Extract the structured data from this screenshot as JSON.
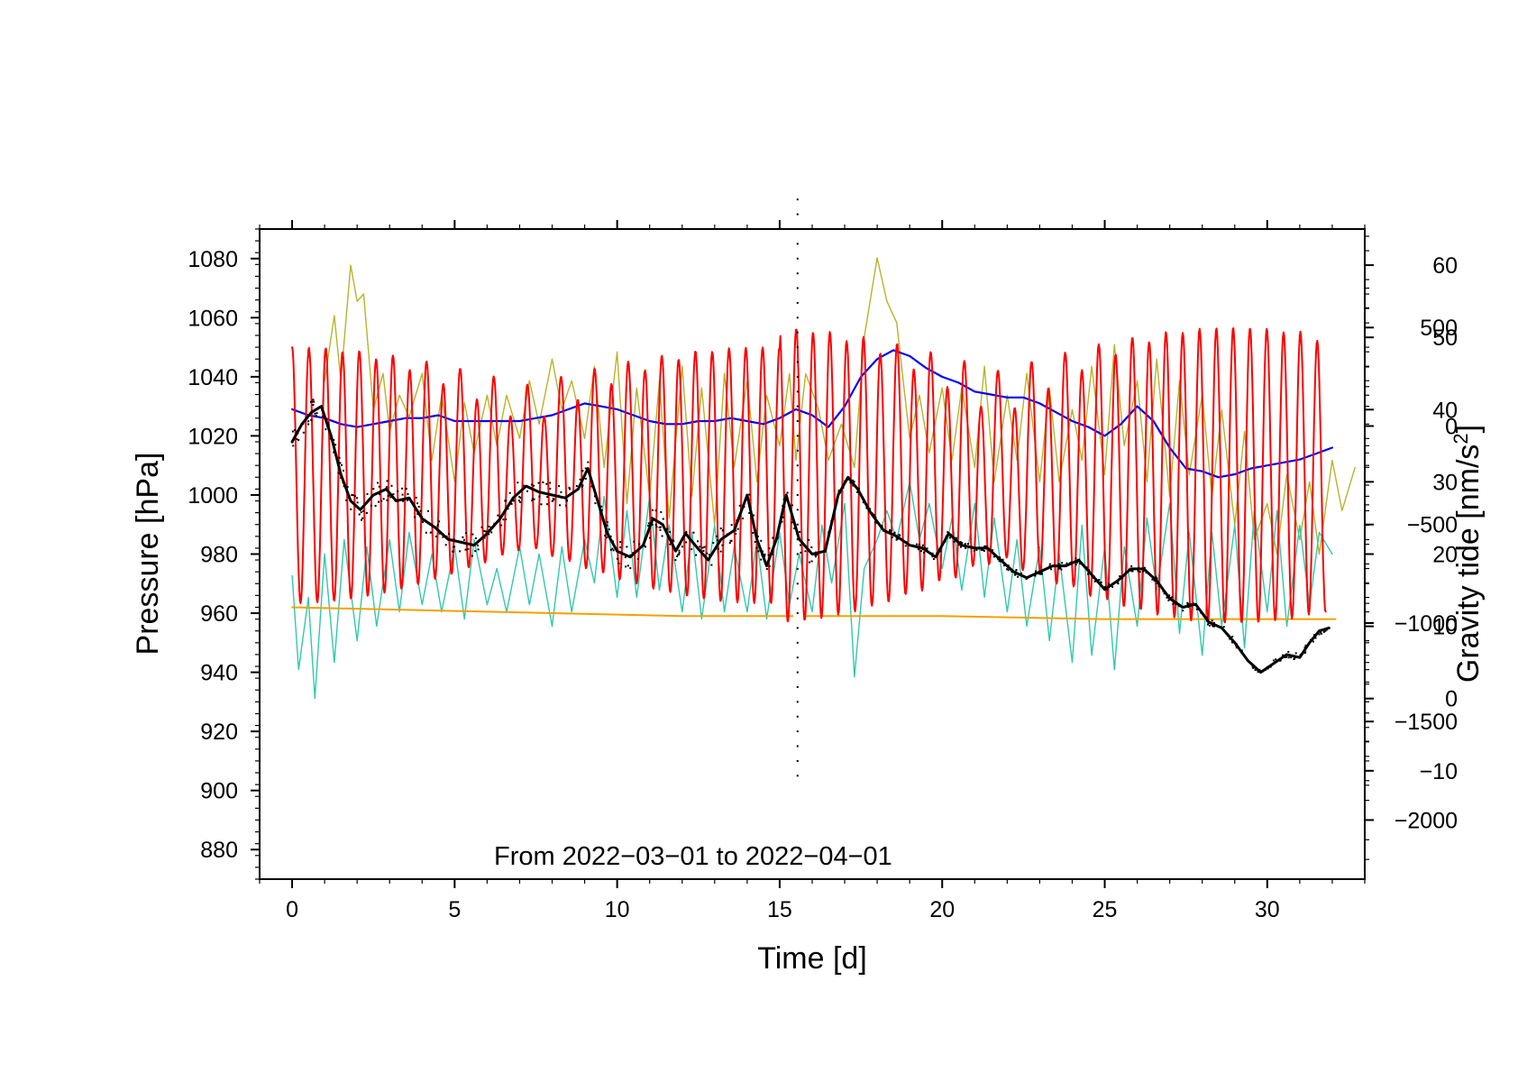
{
  "chart_data": {
    "type": "line",
    "annotation": "From 2022−03−01 to 2022−04−01",
    "x_axis": {
      "label": "Time [d]",
      "range": [
        -1,
        33
      ],
      "ticks": [
        0,
        5,
        10,
        15,
        20,
        25,
        30
      ],
      "tick_labels": [
        "0",
        "5",
        "10",
        "15",
        "20",
        "25",
        "30"
      ]
    },
    "y_axis_left": {
      "label": "Pressure [hPa]",
      "range": [
        870,
        1090
      ],
      "ticks": [
        880,
        900,
        920,
        940,
        960,
        980,
        1000,
        1020,
        1040,
        1060,
        1080
      ],
      "tick_labels": [
        "880",
        "900",
        "920",
        "940",
        "960",
        "980",
        "1000",
        "1020",
        "1040",
        "1060",
        "1080"
      ]
    },
    "y_axis_right_upper": {
      "label": "Gravity tide [nm/s",
      "label_superscript": "2",
      "label_close": "]",
      "range": [
        -25,
        65
      ],
      "ticks": [
        -10,
        0,
        10,
        20,
        30,
        40,
        50,
        60
      ],
      "tick_labels": [
        "−10",
        "0",
        "10",
        "20",
        "30",
        "40",
        "50",
        "60"
      ]
    },
    "y_axis_right_lower": {
      "range": [
        -2300,
        1000
      ],
      "ticks": [
        -2000,
        -1500,
        -1000,
        -500,
        0,
        500
      ],
      "tick_labels": [
        "−2000",
        "−1500",
        "−1000",
        "−500",
        "0",
        "500"
      ]
    },
    "series": [
      {
        "name": "olive",
        "color": "#b5b52a",
        "axis": "right_upper",
        "x": [
          1,
          1.3,
          1.5,
          1.8,
          2.0,
          2.2,
          2.5,
          2.8,
          3.0,
          3.3,
          3.6,
          4.0,
          4.3,
          4.6,
          5.0,
          5.3,
          5.6,
          6.0,
          6.3,
          6.6,
          7.0,
          7.3,
          7.6,
          8.0,
          8.3,
          8.6,
          9.0,
          9.3,
          9.6,
          10.0,
          10.3,
          10.6,
          11.0,
          11.3,
          11.6,
          12.0,
          12.3,
          12.6,
          13.0,
          13.3,
          13.6,
          14.0,
          14.3,
          14.6,
          15.0,
          15.3,
          15.5,
          15.8,
          16.2,
          16.5,
          16.9,
          17.3,
          17.6,
          18.0,
          18.3,
          18.6,
          19.0,
          19.3,
          19.6,
          20.0,
          20.3,
          20.6,
          21.0,
          21.3,
          21.6,
          22.0,
          22.3,
          22.6,
          23.0,
          23.3,
          23.6,
          24.0,
          24.3,
          24.6,
          25.0,
          25.3,
          25.6,
          26.0,
          26.3,
          26.6,
          27.0,
          27.3,
          27.6,
          28.0,
          28.3,
          28.6,
          29.0,
          29.3,
          29.6,
          30.0,
          30.3,
          30.6,
          31.0,
          31.3,
          31.6,
          32.0,
          32.3,
          32.7
        ],
        "values": [
          44,
          53,
          44,
          60,
          55,
          56,
          40,
          45,
          37,
          42,
          39,
          45,
          33,
          42,
          30,
          41,
          34,
          42,
          35,
          42,
          36,
          44,
          38,
          47,
          40,
          44,
          36,
          46,
          32,
          48,
          27,
          43,
          28,
          44,
          25,
          46,
          28,
          43,
          24,
          45,
          32,
          44,
          30,
          42,
          35,
          45,
          33,
          45,
          40,
          33,
          38,
          32,
          50,
          61,
          55,
          52,
          36,
          42,
          34,
          43,
          33,
          43,
          32,
          46,
          30,
          42,
          33,
          45,
          30,
          43,
          30,
          40,
          33,
          46,
          31,
          49,
          35,
          44,
          30,
          47,
          28,
          44,
          31,
          42,
          28,
          40,
          24,
          37,
          22,
          27,
          20,
          31,
          22,
          30,
          20,
          33,
          26,
          32
        ]
      },
      {
        "name": "teal",
        "color": "#30c9ae",
        "axis": "right_upper",
        "x": [
          0,
          0.2,
          0.5,
          0.7,
          1.0,
          1.3,
          1.6,
          2.0,
          2.3,
          2.6,
          3.0,
          3.3,
          3.6,
          4.0,
          4.3,
          4.6,
          5.0,
          5.3,
          5.6,
          6.0,
          6.3,
          6.6,
          7.0,
          7.3,
          7.6,
          8.0,
          8.3,
          8.6,
          9.0,
          9.3,
          9.6,
          10.0,
          10.3,
          10.6,
          11.0,
          11.3,
          11.6,
          12.0,
          12.3,
          12.6,
          13.0,
          13.3,
          13.6,
          14.0,
          14.3,
          14.6,
          15.0,
          15.3,
          15.6,
          16.0,
          16.3,
          16.6,
          17.0,
          17.3,
          17.6,
          18.0,
          18.3,
          18.6,
          19.0,
          19.3,
          19.6,
          20.0,
          20.3,
          20.6,
          21.0,
          21.3,
          21.6,
          22.0,
          22.3,
          22.6,
          23.0,
          23.3,
          23.6,
          24.0,
          24.3,
          24.6,
          25.0,
          25.3,
          25.6,
          26.0,
          26.3,
          26.6,
          27.0,
          27.3,
          27.6,
          28.0,
          28.3,
          28.6,
          29.0,
          29.3,
          29.6,
          30.0,
          30.3,
          30.6,
          31.0,
          31.3,
          31.6,
          32.0
        ],
        "values": [
          17,
          4,
          14,
          0,
          20,
          5,
          22,
          8,
          21,
          10,
          22,
          12,
          23,
          13,
          20,
          12,
          21,
          11,
          22,
          13,
          18,
          12,
          21,
          13,
          20,
          10,
          21,
          12,
          22,
          16,
          28,
          14,
          26,
          14,
          28,
          15,
          24,
          12,
          23,
          11,
          24,
          12,
          21,
          12,
          22,
          11,
          23,
          13,
          20,
          12,
          24,
          16,
          27,
          3,
          18,
          22,
          26,
          22,
          30,
          22,
          27,
          18,
          25,
          15,
          27,
          14,
          25,
          12,
          22,
          10,
          21,
          8,
          20,
          5,
          24,
          6,
          21,
          4,
          21,
          10,
          25,
          15,
          27,
          9,
          23,
          6,
          23,
          10,
          24,
          7,
          26,
          12,
          26,
          10,
          24,
          13,
          23,
          20
        ]
      },
      {
        "name": "blue",
        "color": "#0000ff",
        "axis": "left",
        "x": [
          0,
          0.5,
          1.0,
          1.5,
          2.0,
          2.5,
          3.0,
          3.5,
          4.0,
          4.5,
          5.0,
          5.5,
          6.0,
          6.5,
          7.0,
          7.5,
          8.0,
          8.5,
          9.0,
          9.5,
          10.0,
          10.5,
          11.0,
          11.5,
          12.0,
          12.5,
          13.0,
          13.5,
          14.0,
          14.5,
          15.0,
          15.5,
          16.0,
          16.5,
          17.0,
          17.5,
          18.0,
          18.5,
          19.0,
          19.5,
          20.0,
          20.5,
          21.0,
          21.5,
          22.0,
          22.5,
          23.0,
          23.5,
          24.0,
          24.5,
          25.0,
          25.5,
          26.0,
          26.5,
          27.0,
          27.5,
          28.0,
          28.5,
          29.0,
          29.5,
          30.0,
          30.5,
          31.0,
          31.5,
          32.0
        ],
        "values": [
          1029,
          1027,
          1026,
          1024,
          1023,
          1024,
          1025,
          1026,
          1026,
          1027,
          1025,
          1025,
          1025,
          1025,
          1025,
          1026,
          1027,
          1029,
          1031,
          1030,
          1029,
          1027,
          1025,
          1024,
          1024,
          1025,
          1025,
          1026,
          1025,
          1024,
          1026,
          1029,
          1027,
          1023,
          1030,
          1040,
          1046,
          1049,
          1047,
          1043,
          1040,
          1038,
          1035,
          1034,
          1033,
          1033,
          1031,
          1028,
          1025,
          1023,
          1020,
          1024,
          1030,
          1025,
          1016,
          1009,
          1008,
          1006,
          1007,
          1009,
          1010,
          1011,
          1012,
          1014,
          1016
        ]
      },
      {
        "name": "black",
        "color": "#000000",
        "axis": "left",
        "x": [
          0,
          0.3,
          0.6,
          0.9,
          1.2,
          1.5,
          1.8,
          2.1,
          2.5,
          2.9,
          3.2,
          3.6,
          4.0,
          4.4,
          4.8,
          5.2,
          5.6,
          6.0,
          6.4,
          6.8,
          7.2,
          7.6,
          8.0,
          8.4,
          8.8,
          9.1,
          9.4,
          9.7,
          10.0,
          10.4,
          10.8,
          11.1,
          11.4,
          11.8,
          12.1,
          12.4,
          12.8,
          13.2,
          13.6,
          14.0,
          14.3,
          14.6,
          14.9,
          15.2,
          15.6,
          16.0,
          16.4,
          16.8,
          17.1,
          17.4,
          17.8,
          18.2,
          18.6,
          19.0,
          19.4,
          19.8,
          20.2,
          20.6,
          21.0,
          21.4,
          21.8,
          22.2,
          22.6,
          23.0,
          23.4,
          23.8,
          24.2,
          24.6,
          25.0,
          25.4,
          25.8,
          26.2,
          26.6,
          27.0,
          27.4,
          27.8,
          28.2,
          28.6,
          29.0,
          29.4,
          29.8,
          30.2,
          30.6,
          31.0,
          31.3,
          31.6,
          31.9
        ],
        "values": [
          1018,
          1024,
          1028,
          1030,
          1020,
          1007,
          998,
          995,
          1000,
          1002,
          998,
          999,
          992,
          989,
          985,
          984,
          983,
          987,
          992,
          999,
          1003,
          1001,
          1000,
          999,
          1002,
          1009,
          998,
          987,
          981,
          979,
          983,
          992,
          990,
          981,
          987,
          983,
          978,
          985,
          988,
          1000,
          985,
          976,
          985,
          1000,
          985,
          980,
          981,
          1000,
          1006,
          1002,
          994,
          988,
          986,
          983,
          982,
          979,
          987,
          983,
          982,
          982,
          978,
          974,
          972,
          974,
          976,
          976,
          978,
          973,
          968,
          971,
          975,
          975,
          971,
          965,
          962,
          963,
          957,
          955,
          950,
          944,
          940,
          943,
          946,
          945,
          950,
          954,
          955
        ]
      },
      {
        "name": "orange",
        "color": "#f5a000",
        "axis": "left",
        "x": [
          0,
          4,
          8,
          12,
          15.4
        ],
        "x2": [
          15.8,
          20,
          25,
          30,
          32.1
        ],
        "values": [
          962,
          961,
          960,
          959,
          959
        ],
        "values2": [
          959,
          959,
          958,
          958,
          958
        ]
      },
      {
        "name": "red",
        "color": "#ff0000",
        "axis": "right_lower",
        "x_start": 0,
        "x_end": 31.8,
        "period_days": 0.517,
        "baseline": -250,
        "amplitude_early": 650,
        "amplitude_late": 750,
        "note": "semi-diurnal tidal oscillation, approx. -1000 to +550"
      }
    ]
  }
}
